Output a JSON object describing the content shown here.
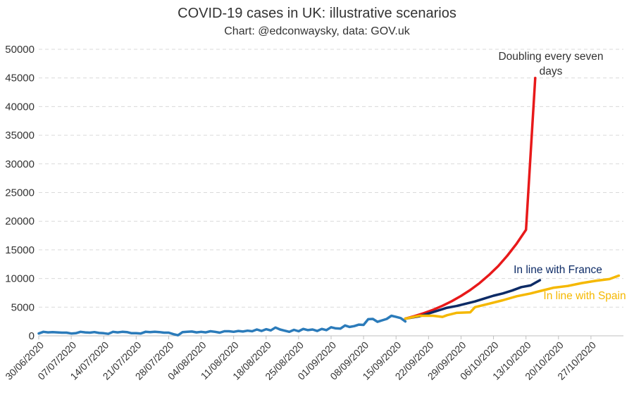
{
  "chart_data": {
    "type": "line",
    "title": "COVID-19 cases in UK: illustrative scenarios",
    "subtitle": "Chart: @edconwaysky, data: GOV.uk",
    "ylim": [
      0,
      50000
    ],
    "yticks": [
      "0",
      "5000",
      "10000",
      "15000",
      "20000",
      "25000",
      "30000",
      "35000",
      "40000",
      "45000",
      "50000"
    ],
    "x_start": "30/06/2020",
    "x_end": "03/11/2020",
    "xticks": [
      "30/06/2020",
      "07/07/2020",
      "14/07/2020",
      "21/07/2020",
      "28/07/2020",
      "04/08/2020",
      "11/08/2020",
      "18/08/2020",
      "25/08/2020",
      "01/09/2020",
      "08/09/2020",
      "15/09/2020",
      "22/09/2020",
      "29/09/2020",
      "06/10/2020",
      "13/10/2020",
      "20/10/2020",
      "27/10/2020"
    ],
    "grid": true,
    "series": [
      {
        "name": "",
        "color": "#2b7bba",
        "x": [
          "30/06/2020",
          "01/07/2020",
          "02/07/2020",
          "03/07/2020",
          "04/07/2020",
          "05/07/2020",
          "06/07/2020",
          "07/07/2020",
          "08/07/2020",
          "09/07/2020",
          "10/07/2020",
          "11/07/2020",
          "12/07/2020",
          "13/07/2020",
          "14/07/2020",
          "15/07/2020",
          "16/07/2020",
          "17/07/2020",
          "18/07/2020",
          "19/07/2020",
          "20/07/2020",
          "21/07/2020",
          "22/07/2020",
          "23/07/2020",
          "24/07/2020",
          "25/07/2020",
          "26/07/2020",
          "27/07/2020",
          "28/07/2020",
          "29/07/2020",
          "30/07/2020",
          "31/07/2020",
          "01/08/2020",
          "02/08/2020",
          "03/08/2020",
          "04/08/2020",
          "05/08/2020",
          "06/08/2020",
          "07/08/2020",
          "08/08/2020",
          "09/08/2020",
          "10/08/2020",
          "11/08/2020",
          "12/08/2020",
          "13/08/2020",
          "14/08/2020",
          "15/08/2020",
          "16/08/2020",
          "17/08/2020",
          "18/08/2020",
          "19/08/2020",
          "20/08/2020",
          "21/08/2020",
          "22/08/2020",
          "23/08/2020",
          "24/08/2020",
          "25/08/2020",
          "26/08/2020",
          "27/08/2020",
          "28/08/2020",
          "29/08/2020",
          "30/08/2020",
          "31/08/2020",
          "01/09/2020",
          "02/09/2020",
          "03/09/2020",
          "04/09/2020",
          "05/09/2020",
          "06/09/2020",
          "07/09/2020",
          "08/09/2020",
          "09/09/2020",
          "10/09/2020",
          "11/09/2020",
          "12/09/2020",
          "13/09/2020",
          "14/09/2020",
          "15/09/2020",
          "16/09/2020",
          "17/09/2020"
        ],
        "values": [
          400,
          700,
          600,
          650,
          600,
          550,
          550,
          400,
          450,
          700,
          600,
          550,
          650,
          500,
          450,
          350,
          700,
          600,
          700,
          650,
          450,
          450,
          400,
          700,
          650,
          700,
          650,
          550,
          550,
          300,
          100,
          650,
          700,
          750,
          600,
          700,
          600,
          800,
          700,
          550,
          800,
          800,
          700,
          850,
          750,
          900,
          800,
          1100,
          850,
          1150,
          950,
          1450,
          1100,
          900,
          700,
          1050,
          800,
          1200,
          1000,
          1100,
          850,
          1200,
          1000,
          1500,
          1300,
          1250,
          1800,
          1550,
          1700,
          1950,
          1900,
          2900,
          2950,
          2450,
          2700,
          2950,
          3500,
          3300,
          3100,
          2500
        ]
      },
      {
        "name": "Doubling every seven days",
        "color": "#e8191a",
        "x": [
          "17/09/2020",
          "19/09/2020",
          "21/09/2020",
          "23/09/2020",
          "25/09/2020",
          "27/09/2020",
          "29/09/2020",
          "01/10/2020",
          "03/10/2020",
          "05/10/2020",
          "07/10/2020",
          "09/10/2020",
          "11/10/2020",
          "13/10/2020",
          "15/10/2020"
        ],
        "values": [
          3000,
          3450,
          3950,
          4550,
          5250,
          6050,
          6950,
          8000,
          9200,
          10600,
          12150,
          14000,
          16100,
          18500,
          45000
        ]
      },
      {
        "name": "In line with France",
        "color": "#0d2b66",
        "x": [
          "17/09/2020",
          "20/09/2020",
          "22/09/2020",
          "24/09/2020",
          "26/09/2020",
          "28/09/2020",
          "30/09/2020",
          "02/10/2020",
          "04/10/2020",
          "06/10/2020",
          "08/10/2020",
          "10/10/2020",
          "12/10/2020",
          "14/10/2020",
          "16/10/2020"
        ],
        "values": [
          3000,
          3400,
          3900,
          4400,
          4900,
          5200,
          5600,
          6000,
          6500,
          7000,
          7400,
          7900,
          8500,
          8800,
          9700
        ]
      },
      {
        "name": "In line with Spain",
        "color": "#f5b800",
        "x": [
          "17/09/2020",
          "20/09/2020",
          "23/09/2020",
          "25/09/2020",
          "26/09/2020",
          "28/09/2020",
          "01/10/2020",
          "02/10/2020",
          "05/10/2020",
          "08/10/2020",
          "11/10/2020",
          "14/10/2020",
          "16/10/2020",
          "19/10/2020",
          "22/10/2020",
          "25/10/2020",
          "28/10/2020",
          "31/10/2020",
          "02/11/2020"
        ],
        "values": [
          3000,
          3500,
          3500,
          3300,
          3600,
          4000,
          4100,
          5000,
          5600,
          6200,
          6900,
          7400,
          7800,
          8400,
          8700,
          9200,
          9600,
          9900,
          10500
        ]
      }
    ],
    "annotations": [
      {
        "text_lines": [
          "Doubling every seven",
          "days"
        ],
        "color": "#333333"
      },
      {
        "text_lines": [
          "In line with France"
        ],
        "color": "#0d2b66"
      },
      {
        "text_lines": [
          "In line with Spain"
        ],
        "color": "#f5b800"
      }
    ]
  }
}
